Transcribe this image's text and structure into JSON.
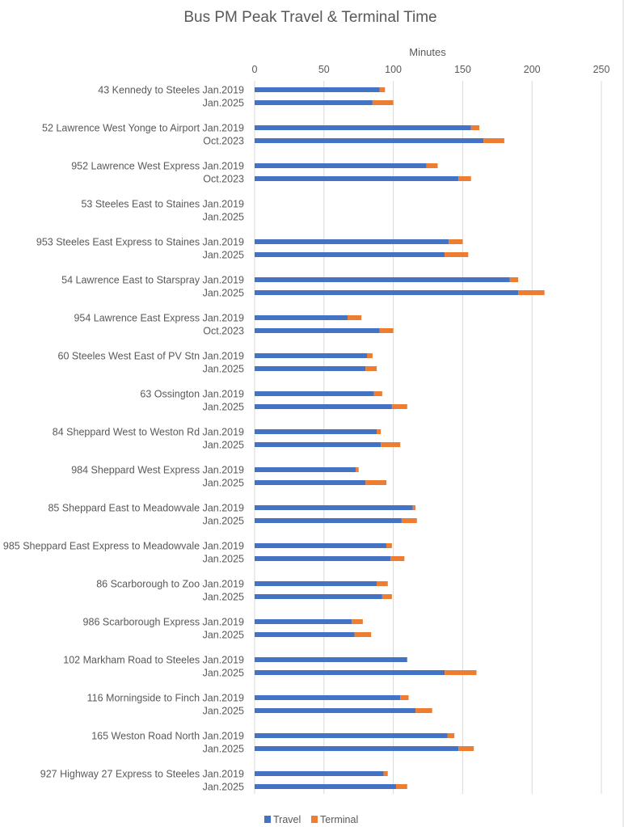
{
  "chart_data": {
    "type": "bar",
    "orientation": "horizontal",
    "stacked": true,
    "title": "Bus PM Peak Travel & Terminal Time",
    "xlabel": "Minutes",
    "ylabel": "",
    "xlim": [
      0,
      250
    ],
    "xticks": [
      "0",
      "50",
      "100",
      "150",
      "200",
      "250"
    ],
    "grid": true,
    "legend_position": "bottom",
    "colors": {
      "Travel": "#4472C4",
      "Terminal": "#ED7D31"
    },
    "groups": [
      {
        "route": "43 Kennedy to Steeles",
        "rows": [
          {
            "label": "43 Kennedy to Steeles Jan.2019",
            "period": "Jan.2019",
            "travel": 90,
            "terminal": 4
          },
          {
            "label": "Jan.2025",
            "period": "Jan.2025",
            "travel": 85,
            "terminal": 15
          }
        ]
      },
      {
        "route": "52 Lawrence West Yonge to Airport",
        "rows": [
          {
            "label": "52 Lawrence West Yonge to Airport Jan.2019",
            "period": "Jan.2019",
            "travel": 156,
            "terminal": 6
          },
          {
            "label": "Oct.2023",
            "period": "Oct.2023",
            "travel": 165,
            "terminal": 15
          }
        ]
      },
      {
        "route": "952 Lawrence West Express",
        "rows": [
          {
            "label": "952 Lawrence West Express Jan.2019",
            "period": "Jan.2019",
            "travel": 124,
            "terminal": 8
          },
          {
            "label": "Oct.2023",
            "period": "Oct.2023",
            "travel": 147,
            "terminal": 9
          }
        ]
      },
      {
        "route": "53 Steeles East to Staines",
        "rows": [
          {
            "label": "53 Steeles East to Staines Jan.2019",
            "period": "Jan.2019",
            "travel": 0,
            "terminal": 0
          },
          {
            "label": "Jan.2025",
            "period": "Jan.2025",
            "travel": 0,
            "terminal": 0
          }
        ]
      },
      {
        "route": "953 Steeles East Express to Staines",
        "rows": [
          {
            "label": "953 Steeles East Express to Staines Jan.2019",
            "period": "Jan.2019",
            "travel": 140,
            "terminal": 10
          },
          {
            "label": "Jan.2025",
            "period": "Jan.2025",
            "travel": 137,
            "terminal": 17
          }
        ]
      },
      {
        "route": "54 Lawrence East to Starspray",
        "rows": [
          {
            "label": "54 Lawrence East to Starspray Jan.2019",
            "period": "Jan.2019",
            "travel": 184,
            "terminal": 6
          },
          {
            "label": "Jan.2025",
            "period": "Jan.2025",
            "travel": 190,
            "terminal": 19
          }
        ]
      },
      {
        "route": "954 Lawrence East Express",
        "rows": [
          {
            "label": "954 Lawrence East Express Jan.2019",
            "period": "Jan.2019",
            "travel": 67,
            "terminal": 10
          },
          {
            "label": "Oct.2023",
            "period": "Oct.2023",
            "travel": 90,
            "terminal": 10
          }
        ]
      },
      {
        "route": "60 Steeles West East of PV Stn",
        "rows": [
          {
            "label": "60 Steeles West East of PV Stn Jan.2019",
            "period": "Jan.2019",
            "travel": 81,
            "terminal": 4
          },
          {
            "label": "Jan.2025",
            "period": "Jan.2025",
            "travel": 80,
            "terminal": 8
          }
        ]
      },
      {
        "route": "63 Ossington",
        "rows": [
          {
            "label": "63 Ossington Jan.2019",
            "period": "Jan.2019",
            "travel": 86,
            "terminal": 6
          },
          {
            "label": "Jan.2025",
            "period": "Jan.2025",
            "travel": 99,
            "terminal": 11
          }
        ]
      },
      {
        "route": "84 Sheppard West to Weston Rd",
        "rows": [
          {
            "label": "84 Sheppard West to Weston Rd Jan.2019",
            "period": "Jan.2019",
            "travel": 88,
            "terminal": 3
          },
          {
            "label": "Jan.2025",
            "period": "Jan.2025",
            "travel": 91,
            "terminal": 14
          }
        ]
      },
      {
        "route": "984 Sheppard West Express",
        "rows": [
          {
            "label": "984 Sheppard West Express Jan.2019",
            "period": "Jan.2019",
            "travel": 73,
            "terminal": 2
          },
          {
            "label": "Jan.2025",
            "period": "Jan.2025",
            "travel": 80,
            "terminal": 15
          }
        ]
      },
      {
        "route": "85 Sheppard East to Meadowvale",
        "rows": [
          {
            "label": "85 Sheppard East to Meadowvale Jan.2019",
            "period": "Jan.2019",
            "travel": 114,
            "terminal": 2
          },
          {
            "label": "Jan.2025",
            "period": "Jan.2025",
            "travel": 106,
            "terminal": 11
          }
        ]
      },
      {
        "route": "985 Sheppard East Express to Meadowvale",
        "rows": [
          {
            "label": "985 Sheppard East Express to Meadowvale Jan.2019",
            "period": "Jan.2019",
            "travel": 95,
            "terminal": 4
          },
          {
            "label": "Jan.2025",
            "period": "Jan.2025",
            "travel": 98,
            "terminal": 10
          }
        ]
      },
      {
        "route": "86 Scarborough to Zoo",
        "rows": [
          {
            "label": "86 Scarborough to Zoo Jan.2019",
            "period": "Jan.2019",
            "travel": 88,
            "terminal": 8
          },
          {
            "label": "Jan.2025",
            "period": "Jan.2025",
            "travel": 92,
            "terminal": 7
          }
        ]
      },
      {
        "route": "986 Scarborough Express",
        "rows": [
          {
            "label": "986 Scarborough Express Jan.2019",
            "period": "Jan.2019",
            "travel": 70,
            "terminal": 8
          },
          {
            "label": "Jan.2025",
            "period": "Jan.2025",
            "travel": 72,
            "terminal": 12
          }
        ]
      },
      {
        "route": "102 Markham Road to Steeles",
        "rows": [
          {
            "label": "102 Markham Road to Steeles Jan.2019",
            "period": "Jan.2019",
            "travel": 110,
            "terminal": 0
          },
          {
            "label": "Jan.2025",
            "period": "Jan.2025",
            "travel": 137,
            "terminal": 23
          }
        ]
      },
      {
        "route": "116 Morningside to Finch",
        "rows": [
          {
            "label": "116 Morningside to Finch Jan.2019",
            "period": "Jan.2019",
            "travel": 105,
            "terminal": 6
          },
          {
            "label": "Jan.2025",
            "period": "Jan.2025",
            "travel": 116,
            "terminal": 12
          }
        ]
      },
      {
        "route": "165 Weston Road North",
        "rows": [
          {
            "label": "165 Weston Road North Jan.2019",
            "period": "Jan.2019",
            "travel": 139,
            "terminal": 5
          },
          {
            "label": "Jan.2025",
            "period": "Jan.2025",
            "travel": 147,
            "terminal": 11
          }
        ]
      },
      {
        "route": "927 Highway 27 Express to Steeles",
        "rows": [
          {
            "label": "927 Highway 27 Express to Steeles Jan.2019",
            "period": "Jan.2019",
            "travel": 93,
            "terminal": 3
          },
          {
            "label": "Jan.2025",
            "period": "Jan.2025",
            "travel": 102,
            "terminal": 8
          }
        ]
      }
    ],
    "series": [
      {
        "name": "Travel"
      },
      {
        "name": "Terminal"
      }
    ]
  }
}
